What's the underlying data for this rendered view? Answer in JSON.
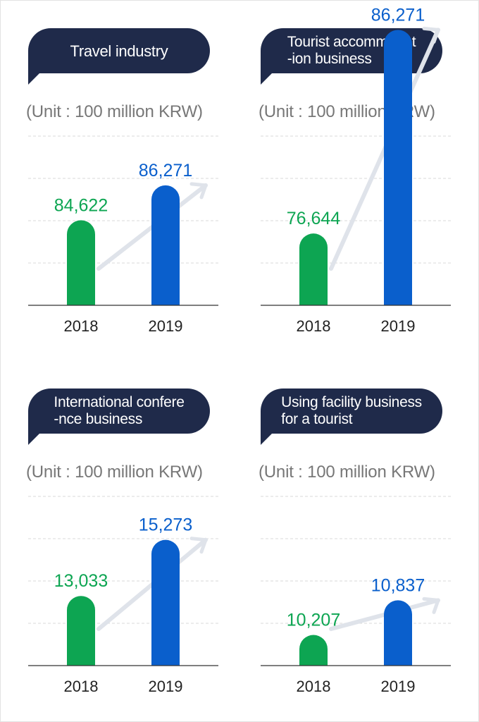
{
  "unit_label": "(Unit : 100 million KRW)",
  "colors": {
    "y2018": "#0da552",
    "y2019": "#0a5fcc",
    "header": "#1f2a4a",
    "arrow": "#dfe3ea"
  },
  "chart_data": [
    {
      "type": "bar",
      "title": "Travel industry",
      "subtitle": "(Unit : 100 million KRW)",
      "categories": [
        "2018",
        "2019"
      ],
      "values": [
        84622,
        86271
      ],
      "value_labels": [
        "84,622",
        "86,271"
      ]
    },
    {
      "type": "bar",
      "title": "Tourist accommodat\n-ion business",
      "subtitle": "(Unit : 100 million KRW)",
      "categories": [
        "2018",
        "2019"
      ],
      "values": [
        76644,
        86271
      ],
      "value_labels": [
        "76,644",
        "86,271"
      ]
    },
    {
      "type": "bar",
      "title": "International confere\n-nce business",
      "subtitle": "(Unit : 100 million KRW)",
      "categories": [
        "2018",
        "2019"
      ],
      "values": [
        13033,
        15273
      ],
      "value_labels": [
        "13,033",
        "15,273"
      ]
    },
    {
      "type": "bar",
      "title": "Using facility business\nfor a tourist",
      "subtitle": "(Unit : 100 million KRW)",
      "categories": [
        "2018",
        "2019"
      ],
      "values": [
        10207,
        10837
      ],
      "value_labels": [
        "10,207",
        "10,837"
      ]
    }
  ]
}
